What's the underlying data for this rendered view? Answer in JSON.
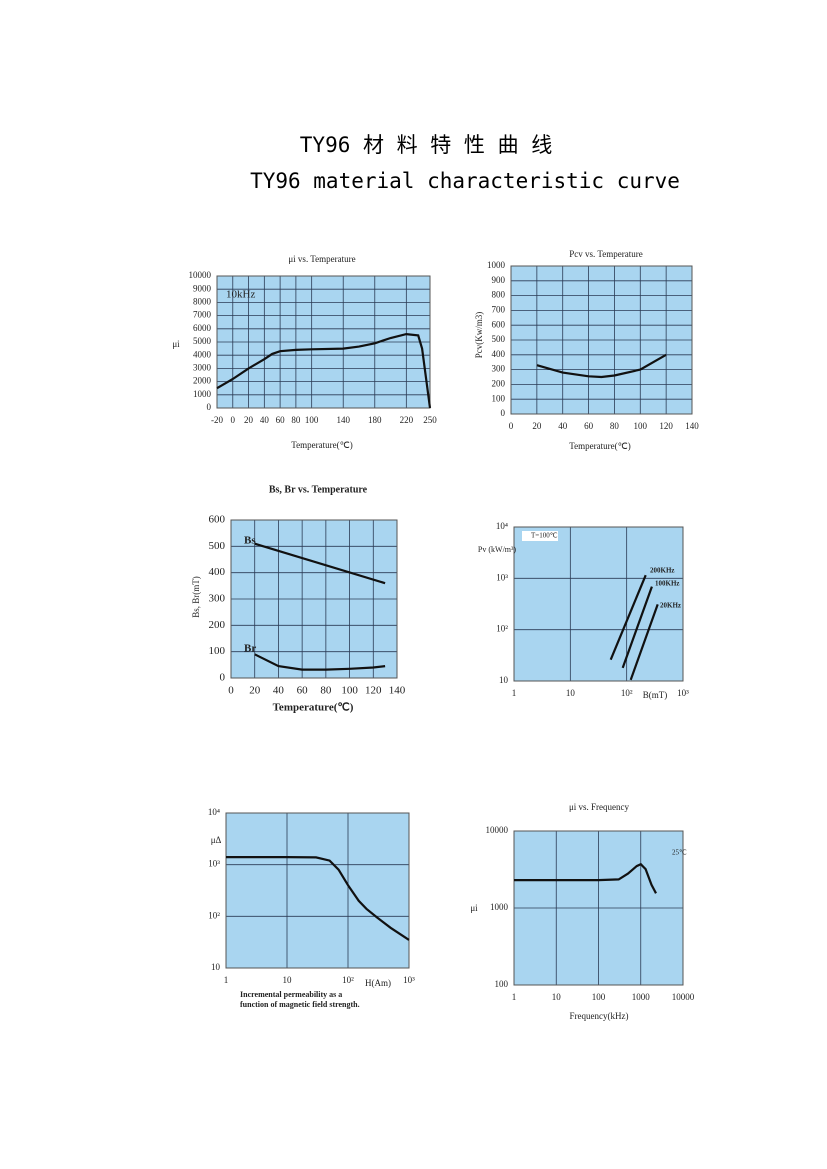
{
  "header": {
    "title_cn": "TY96 材 料 特 性 曲 线",
    "title_en": "TY96 material characteristic curve"
  },
  "chart_data": [
    {
      "type": "line",
      "title": "μi vs.  Temperature",
      "xlabel": "Temperature(℃)",
      "ylabel": "μi",
      "annotations": [
        "10kHz"
      ],
      "plot_color": "#a9d5f0",
      "grid": true,
      "xlim": [
        -20,
        250
      ],
      "xticks": [
        -20,
        0,
        20,
        40,
        60,
        80,
        100,
        140,
        180,
        220,
        250
      ],
      "ylim": [
        0,
        10000
      ],
      "yticks": [
        0,
        1000,
        2000,
        3000,
        4000,
        5000,
        6000,
        7000,
        8000,
        9000,
        10000
      ],
      "series": [
        {
          "name": "10kHz",
          "color": "#111111",
          "x": [
            -20,
            0,
            20,
            40,
            50,
            60,
            80,
            100,
            140,
            160,
            180,
            200,
            220,
            235,
            240,
            250
          ],
          "values": [
            1500,
            2200,
            3000,
            3700,
            4100,
            4300,
            4400,
            4450,
            4500,
            4650,
            4900,
            5300,
            5600,
            5500,
            4500,
            0
          ]
        }
      ]
    },
    {
      "type": "line",
      "title": "Pcv vs.  Temperature",
      "xlabel": "Temperature(℃)",
      "ylabel": "Pcv(Kw/m3)",
      "plot_color": "#a9d5f0",
      "grid": true,
      "xlim": [
        0,
        140
      ],
      "xticks": [
        0,
        20,
        40,
        60,
        80,
        100,
        120,
        140
      ],
      "ylim": [
        0,
        1000
      ],
      "yticks": [
        0,
        100,
        200,
        300,
        400,
        500,
        600,
        700,
        800,
        900,
        1000
      ],
      "series": [
        {
          "name": "Pcv",
          "color": "#111111",
          "x": [
            20,
            40,
            60,
            70,
            80,
            100,
            120
          ],
          "values": [
            330,
            280,
            255,
            250,
            260,
            300,
            400
          ]
        }
      ]
    },
    {
      "type": "line",
      "title": "Bs, Br  vs. Temperature",
      "xlabel": "Temperature(℃)",
      "ylabel": "Bs, Br(mT)",
      "plot_color": "#a9d5f0",
      "grid": true,
      "xlim": [
        0,
        140
      ],
      "xticks": [
        0,
        20,
        40,
        60,
        80,
        100,
        120,
        140
      ],
      "ylim": [
        0,
        600
      ],
      "yticks": [
        0,
        100,
        200,
        300,
        400,
        500,
        600
      ],
      "series": [
        {
          "name": "Bs",
          "color": "#111111",
          "x": [
            20,
            130
          ],
          "values": [
            510,
            360
          ]
        },
        {
          "name": "Br",
          "color": "#111111",
          "x": [
            20,
            40,
            60,
            80,
            100,
            120,
            130
          ],
          "values": [
            90,
            45,
            32,
            32,
            35,
            40,
            45
          ]
        }
      ]
    },
    {
      "type": "line",
      "xlabel": "B(mT)",
      "ylabel": "Pv (kW/m³)",
      "annotations": [
        "T=100℃"
      ],
      "plot_color": "#a9d5f0",
      "grid": true,
      "xlog": true,
      "ylog": true,
      "xlim": [
        1,
        1000
      ],
      "xticks": [
        1,
        10,
        {
          "value": 100,
          "label": "10²"
        },
        {
          "value": 1000,
          "label": "10³"
        }
      ],
      "ylim": [
        10,
        10000
      ],
      "yticks": [
        10,
        {
          "value": 100,
          "label": "10²"
        },
        {
          "value": 1000,
          "label": "10³"
        },
        {
          "value": 10000,
          "label": "10⁴"
        }
      ],
      "series": [
        {
          "name": "200KHz",
          "color": "#111111",
          "x": [
            52,
            218
          ],
          "values": [
            26,
            1150
          ]
        },
        {
          "name": "100KHz",
          "color": "#111111",
          "x": [
            85,
            280
          ],
          "values": [
            18,
            690
          ]
        },
        {
          "name": "20KHz",
          "color": "#111111",
          "x": [
            118,
            355
          ],
          "values": [
            10.5,
            310
          ]
        }
      ]
    },
    {
      "type": "line",
      "xlabel": "H(Am)",
      "ylabel": "μΔ",
      "caption": [
        "Incremental permeability as a",
        "function of magnetic field strength."
      ],
      "plot_color": "#a9d5f0",
      "grid": true,
      "xlog": true,
      "ylog": true,
      "xlim": [
        1,
        1000
      ],
      "xticks": [
        1,
        10,
        {
          "value": 100,
          "label": "10²"
        },
        {
          "value": 1000,
          "label": "10³"
        }
      ],
      "ylim": [
        10,
        10000
      ],
      "yticks": [
        10,
        {
          "value": 100,
          "label": "10²"
        },
        {
          "value": 1000,
          "label": "10³"
        },
        {
          "value": 10000,
          "label": "10⁴"
        }
      ],
      "series": [
        {
          "name": "μΔ",
          "color": "#111111",
          "x": [
            1,
            10,
            30,
            50,
            70,
            100,
            150,
            200,
            300,
            500,
            1000
          ],
          "values": [
            1400,
            1400,
            1380,
            1200,
            800,
            400,
            200,
            140,
            95,
            60,
            35
          ]
        }
      ]
    },
    {
      "type": "line",
      "title": "μi vs. Frequency",
      "xlabel": "Frequency(kHz)",
      "ylabel": "μi",
      "annotations": [
        "25℃"
      ],
      "plot_color": "#a9d5f0",
      "grid": true,
      "xlog": true,
      "ylog": true,
      "xlim": [
        1,
        10000
      ],
      "xticks": [
        1,
        10,
        100,
        1000,
        10000
      ],
      "ylim": [
        100,
        10000
      ],
      "yticks": [
        100,
        1000,
        10000
      ],
      "series": [
        {
          "name": "25℃",
          "color": "#111111",
          "x": [
            1,
            10,
            100,
            300,
            500,
            800,
            1000,
            1300,
            1800,
            2300
          ],
          "values": [
            2300,
            2300,
            2300,
            2350,
            2800,
            3500,
            3700,
            3200,
            2000,
            1550
          ]
        }
      ]
    }
  ]
}
